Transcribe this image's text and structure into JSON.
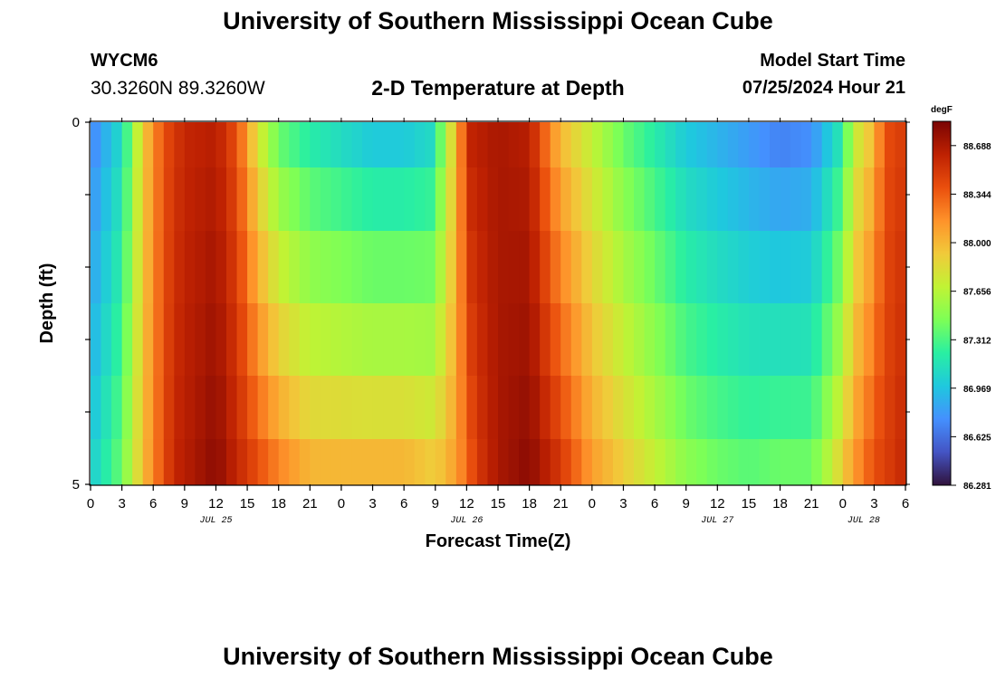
{
  "header": {
    "title": "University of Southern Mississippi Ocean Cube",
    "station": "WYCM6",
    "coordinates": "30.3260N  89.3260W",
    "subtitle": "2-D Temperature at Depth",
    "model_start_label": "Model Start Time",
    "model_start_value": "07/25/2024 Hour 21"
  },
  "footer": {
    "title": "University of Southern Mississippi Ocean Cube"
  },
  "chart_data": {
    "type": "heatmap",
    "xlabel": "Forecast Time(Z)",
    "ylabel": "Depth (ft)",
    "x_tick_labels": [
      "0",
      "3",
      "6",
      "9",
      "12",
      "15",
      "18",
      "21",
      "0",
      "3",
      "6",
      "9",
      "12",
      "15",
      "18",
      "21",
      "0",
      "3",
      "6",
      "9",
      "12",
      "15",
      "18",
      "21",
      "0",
      "3",
      "6"
    ],
    "x_range_hours": [
      0,
      78
    ],
    "date_labels": [
      {
        "label": "JUL 25",
        "hour": 12
      },
      {
        "label": "JUL 26",
        "hour": 36
      },
      {
        "label": "JUL 27",
        "hour": 60
      },
      {
        "label": "JUL 28",
        "hour": 74
      }
    ],
    "y_tick_labels": [
      "0",
      "5"
    ],
    "y_range": [
      0,
      5
    ],
    "depth_levels": [
      0.25,
      1.0,
      2.0,
      3.0,
      4.0,
      4.75
    ],
    "colorbar": {
      "unit": "degF",
      "min": 86.281,
      "max": 88.86,
      "tick_values": [
        86.281,
        86.625,
        86.969,
        87.312,
        87.656,
        88.0,
        88.344,
        88.688
      ],
      "tick_labels": [
        "86.281",
        "86.625",
        "86.969",
        "87.312",
        "87.656",
        "88.000",
        "88.344",
        "88.688"
      ],
      "colors": [
        "#30123b",
        "#4454c4",
        "#4490fe",
        "#1fc8de",
        "#29efa2",
        "#7dff56",
        "#c1f334",
        "#f1ca3a",
        "#fe922a",
        "#ea4f0d",
        "#be2102",
        "#7a0403"
      ]
    },
    "temperature_model": {
      "description_of_values": "degF by depth level and forecast hour",
      "surface_profile_keypoints": [
        [
          0,
          86.7
        ],
        [
          3,
          87.1
        ],
        [
          5,
          87.9
        ],
        [
          7,
          88.4
        ],
        [
          9,
          88.6
        ],
        [
          12,
          88.65
        ],
        [
          14,
          88.4
        ],
        [
          16,
          87.8
        ],
        [
          18,
          87.4
        ],
        [
          21,
          87.2
        ],
        [
          24,
          87.1
        ],
        [
          27,
          87.0
        ],
        [
          30,
          87.0
        ],
        [
          33,
          87.1
        ],
        [
          34,
          87.7
        ],
        [
          35,
          87.9
        ],
        [
          36,
          88.6
        ],
        [
          39,
          88.7
        ],
        [
          42,
          88.65
        ],
        [
          44,
          88.2
        ],
        [
          45,
          88.0
        ],
        [
          48,
          87.7
        ],
        [
          51,
          87.4
        ],
        [
          54,
          87.2
        ],
        [
          57,
          87.0
        ],
        [
          60,
          86.9
        ],
        [
          63,
          86.8
        ],
        [
          66,
          86.7
        ],
        [
          69,
          86.75
        ],
        [
          72,
          87.2
        ],
        [
          73,
          87.7
        ],
        [
          75,
          88.0
        ],
        [
          76,
          88.4
        ],
        [
          78,
          88.5
        ]
      ],
      "bottom_profile_keypoints": [
        [
          0,
          87.0
        ],
        [
          3,
          87.4
        ],
        [
          4,
          87.7
        ],
        [
          6,
          88.2
        ],
        [
          8,
          88.6
        ],
        [
          10,
          88.7
        ],
        [
          12,
          88.8
        ],
        [
          15,
          88.5
        ],
        [
          18,
          88.2
        ],
        [
          21,
          88.0
        ],
        [
          24,
          88.0
        ],
        [
          27,
          88.0
        ],
        [
          30,
          88.0
        ],
        [
          33,
          87.9
        ],
        [
          35,
          88.1
        ],
        [
          37,
          88.5
        ],
        [
          39,
          88.7
        ],
        [
          42,
          88.8
        ],
        [
          45,
          88.5
        ],
        [
          48,
          88.1
        ],
        [
          51,
          87.9
        ],
        [
          54,
          87.7
        ],
        [
          57,
          87.5
        ],
        [
          60,
          87.4
        ],
        [
          63,
          87.35
        ],
        [
          66,
          87.4
        ],
        [
          69,
          87.4
        ],
        [
          71,
          87.7
        ],
        [
          73,
          88.1
        ],
        [
          75,
          88.4
        ],
        [
          78,
          88.6
        ]
      ]
    }
  }
}
